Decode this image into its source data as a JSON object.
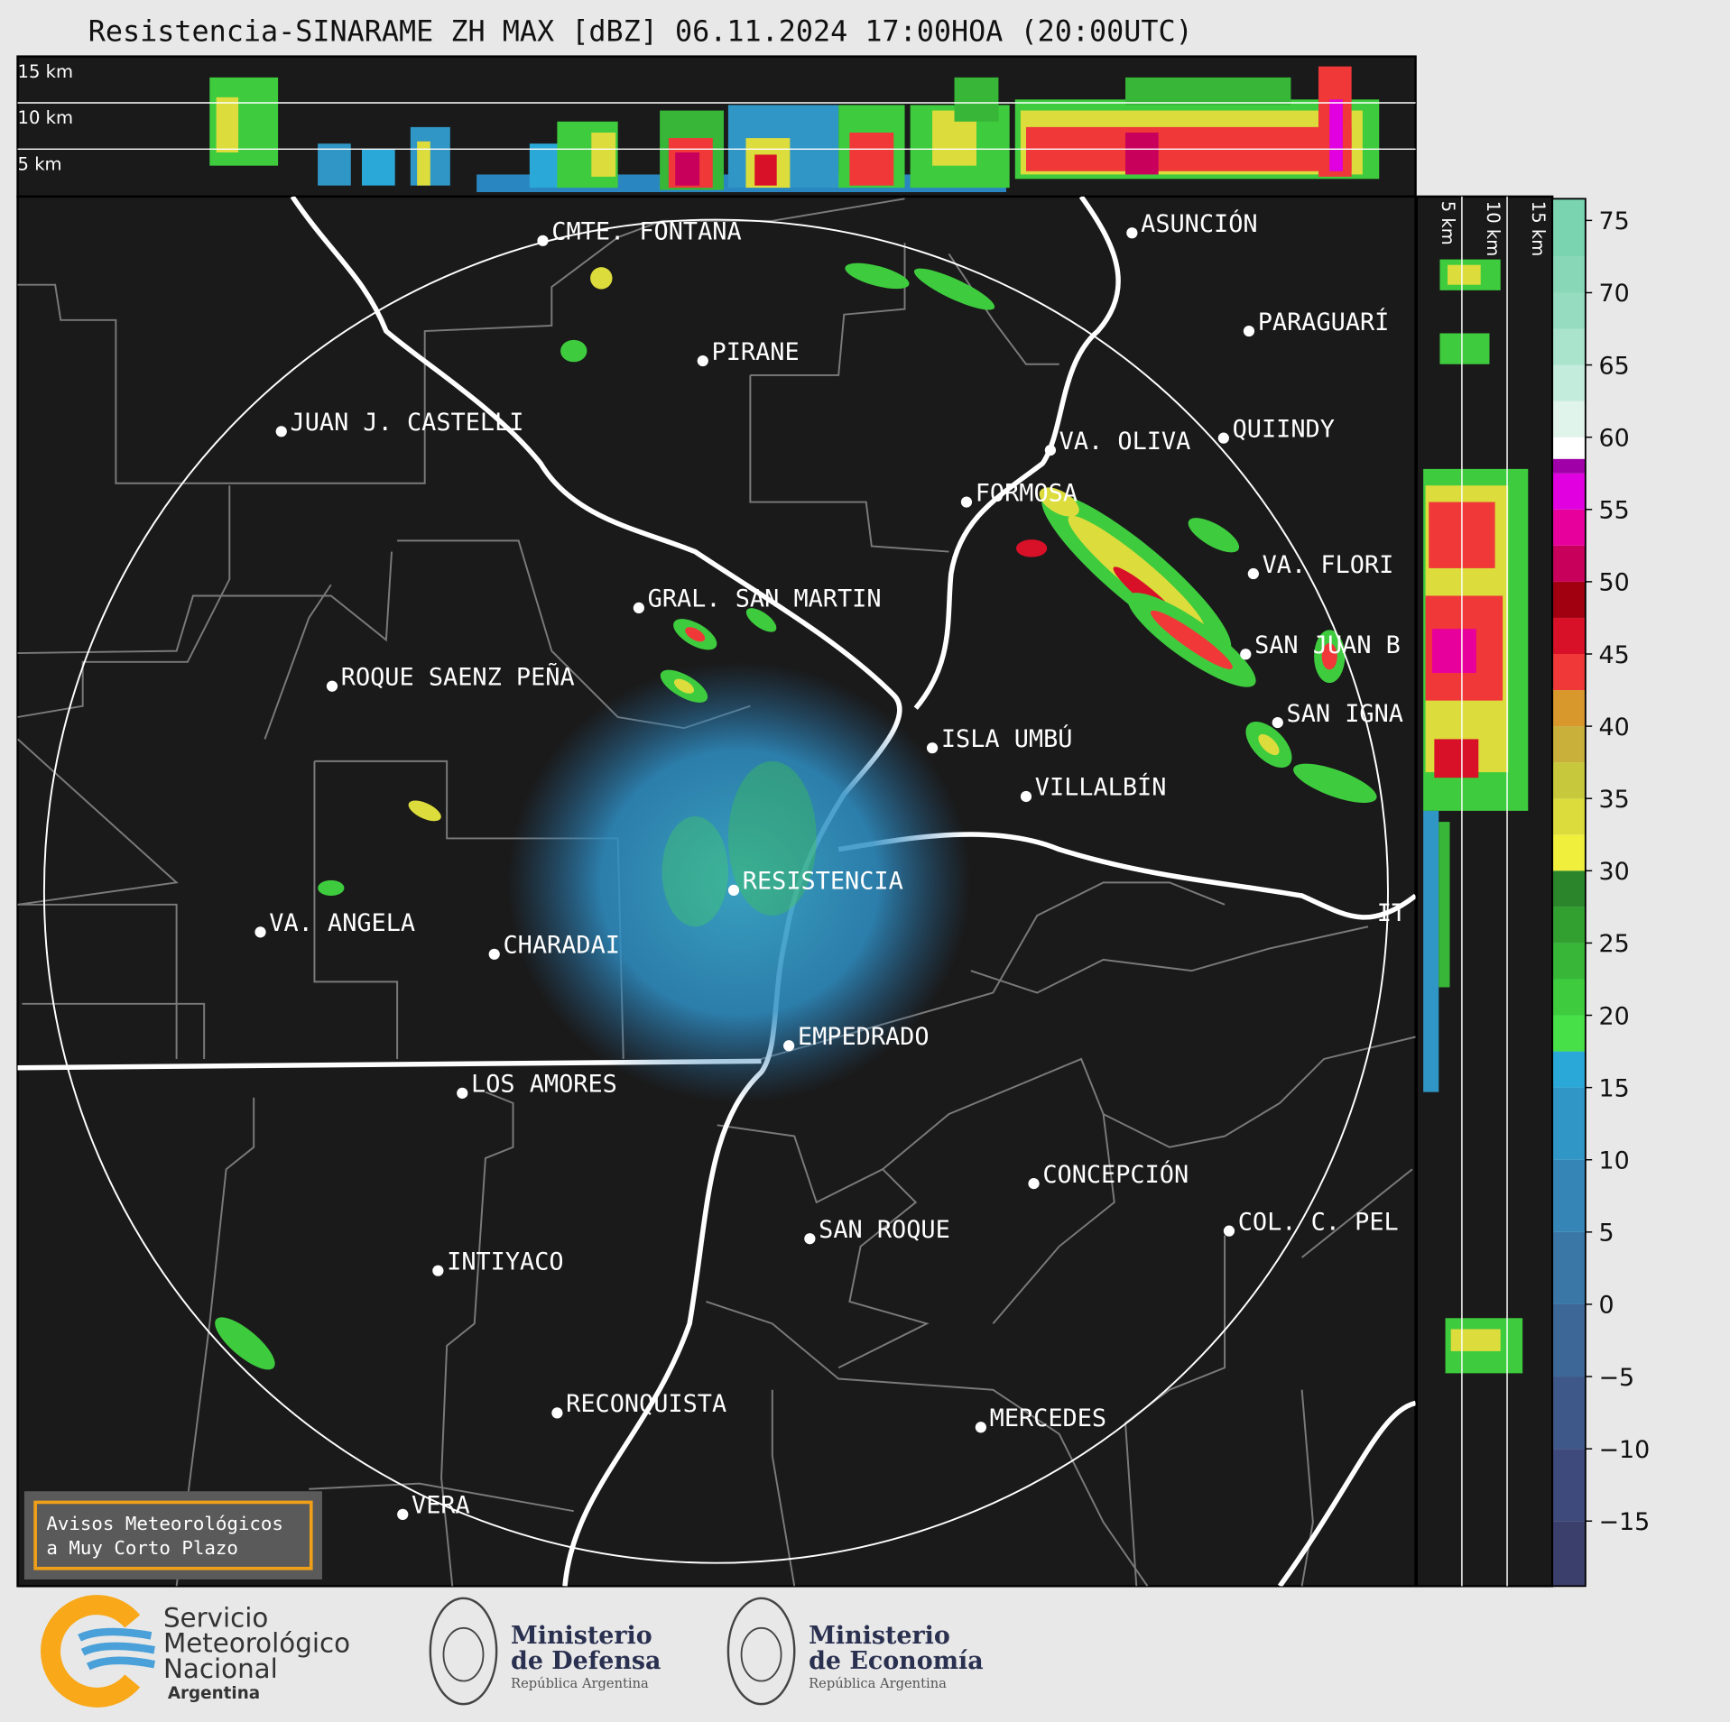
{
  "title": "Resistencia-SINARAME ZH MAX [dBZ] 06.11.2024 17:00HOA (20:00UTC)",
  "vertical_section_labels": [
    "15 km",
    "10 km",
    "5 km"
  ],
  "horizontal_section_labels": [
    "5 km",
    "10 km",
    "15 km"
  ],
  "cities": [
    "CMTE. FONTANA",
    "PIRANE",
    "JUAN J. CASTELLI",
    "ASUNCIÓN",
    "PARAGUARÍ",
    "VA. OLIVA",
    "QUIINDY",
    "FORMOSA",
    "VA. FLORI",
    "GRAL. SAN MARTIN",
    "ROQUE SAENZ PEÑA",
    "SAN JUAN B",
    "SAN IGNA",
    "ISLA UMBÚ",
    "VILLALBÍN",
    "RESISTENCIA",
    "VA. ANGELA",
    "CHARADAI",
    "IT",
    "EMPEDRADO",
    "LOS AMORES",
    "CONCEPCIÓN",
    "SAN ROQUE",
    "COL. C. PEL",
    "INTIYACO",
    "RECONQUISTA",
    "MERCEDES",
    "VERA"
  ],
  "colorbar": {
    "clim": [
      -19.5,
      76.5
    ],
    "ticks": [
      {
        "value": -15,
        "label": "−15"
      },
      {
        "value": -10,
        "label": "−10"
      },
      {
        "value": -5,
        "label": "−5"
      },
      0,
      5,
      10,
      15,
      20,
      25,
      30,
      35,
      40,
      45,
      50,
      55,
      60,
      65,
      70,
      75
    ],
    "bands": [
      {
        "from": -19.5,
        "color": "#3b3f6c"
      },
      {
        "from": -15,
        "color": "#3d4a7b"
      },
      {
        "from": -10,
        "color": "#3e5889"
      },
      {
        "from": -5,
        "color": "#3d6797"
      },
      {
        "from": 0,
        "color": "#3a76a6"
      },
      {
        "from": 5,
        "color": "#3586b6"
      },
      {
        "from": 10,
        "color": "#2f96c6"
      },
      {
        "from": 15,
        "color": "#2aa8d8"
      },
      {
        "from": 17.5,
        "color": "#48e048"
      },
      {
        "from": 20,
        "color": "#3ecc3e"
      },
      {
        "from": 22.5,
        "color": "#37b637"
      },
      {
        "from": 25,
        "color": "#31a031"
      },
      {
        "from": 27.5,
        "color": "#2b862b"
      },
      {
        "from": 30,
        "color": "#f0f03c"
      },
      {
        "from": 32.5,
        "color": "#dcdc3c"
      },
      {
        "from": 35,
        "color": "#c8c83c"
      },
      {
        "from": 37.5,
        "color": "#c8b03a"
      },
      {
        "from": 40,
        "color": "#d8982c"
      },
      {
        "from": 42.5,
        "color": "#f03838"
      },
      {
        "from": 45,
        "color": "#d81028"
      },
      {
        "from": 47.5,
        "color": "#a00010"
      },
      {
        "from": 50,
        "color": "#c8005c"
      },
      {
        "from": 52.5,
        "color": "#e8009c"
      },
      {
        "from": 55,
        "color": "#e000e0"
      },
      {
        "from": 57.5,
        "color": "#a000a8"
      },
      {
        "from": 58.5,
        "color": "#ffffff"
      },
      {
        "from": 60,
        "color": "#e0f4ec"
      },
      {
        "from": 62.5,
        "color": "#c4ecdc"
      },
      {
        "from": 65,
        "color": "#aae4cc"
      },
      {
        "from": 67.5,
        "color": "#96dcc0"
      },
      {
        "from": 70,
        "color": "#88d8b8"
      },
      {
        "from": 72.5,
        "color": "#7ad4b0"
      }
    ]
  },
  "notice": [
    "Avisos Meteorológicos",
    "a Muy Corto Plazo"
  ],
  "logos": [
    {
      "lines": [
        "Servicio",
        "Meteorológico",
        "Nacional"
      ],
      "subtitle": "Argentina"
    },
    {
      "lines": [
        "Ministerio",
        "de Defensa"
      ],
      "subtitle": "República Argentina"
    },
    {
      "lines": [
        "Ministerio",
        "de Economía"
      ],
      "subtitle": "República Argentina"
    }
  ]
}
